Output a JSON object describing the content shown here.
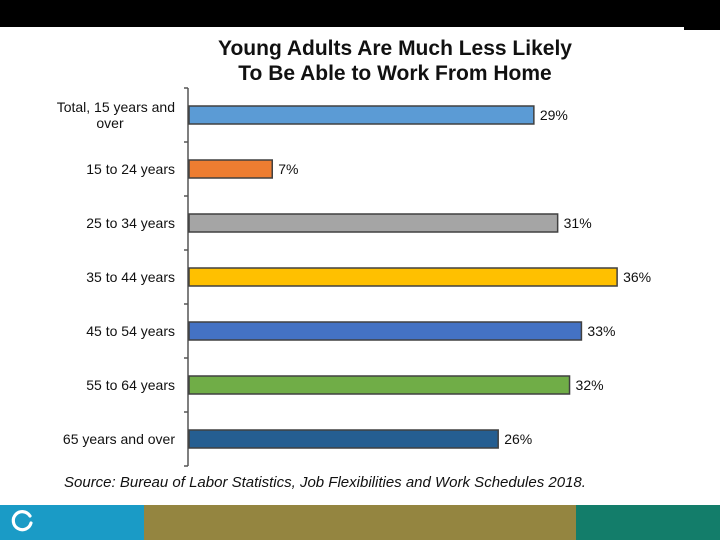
{
  "colors": {
    "footer_blue": "#1a9bc6",
    "footer_olive": "#948540",
    "footer_teal": "#137d6a",
    "axis": "#555555"
  },
  "chart_data": {
    "type": "bar",
    "orientation": "horizontal",
    "title_line1": "Young Adults Are Much Less Likely",
    "title_line2": "To Be Able to Work From Home",
    "categories": [
      [
        "Total, 15 years and",
        "over"
      ],
      [
        "15 to 24 years"
      ],
      [
        "25 to 34 years"
      ],
      [
        "35 to 44 years"
      ],
      [
        "45 to 54 years"
      ],
      [
        "55 to 64 years"
      ],
      [
        "65 years and over"
      ]
    ],
    "values": [
      29,
      7,
      31,
      36,
      33,
      32,
      26
    ],
    "value_labels": [
      "29%",
      "7%",
      "31%",
      "36%",
      "33%",
      "32%",
      "26%"
    ],
    "bar_colors": [
      "#5b9bd5",
      "#ed7d31",
      "#a5a5a5",
      "#ffc000",
      "#4472c4",
      "#70ad47",
      "#255e91"
    ],
    "xlim": [
      0,
      37
    ],
    "grid": false,
    "legend": "none"
  },
  "source": "Source: Bureau of Labor Statistics, Job Flexibilities and Work Schedules 2018."
}
